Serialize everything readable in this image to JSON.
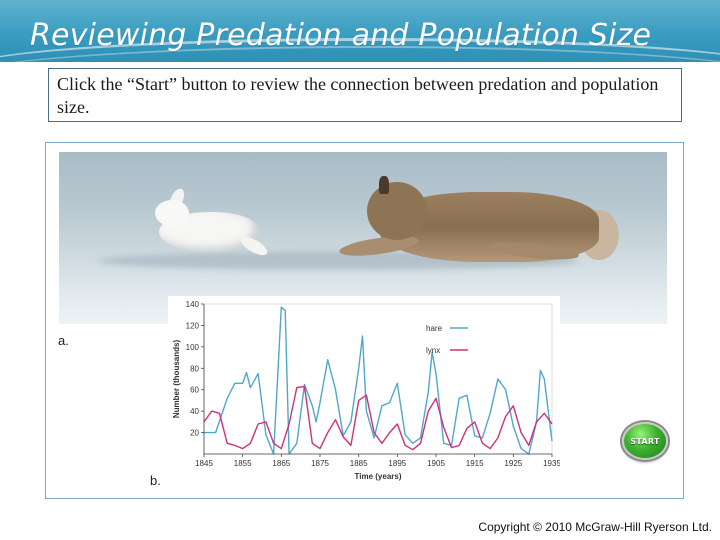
{
  "header": {
    "title": "Reviewing Predation and Population Size"
  },
  "instructions": {
    "text": "Click the “Start” button to review the connection between predation and population size."
  },
  "figure": {
    "photo_label": "a.",
    "chart_label": "b."
  },
  "start_button": {
    "label": "START"
  },
  "footer": {
    "copyright": "Copyright © 2010 McGraw-Hill Ryerson Ltd."
  },
  "colors": {
    "header": "#3a9cc0",
    "hare": "#4fa8c8",
    "lynx": "#d0307a",
    "start": "#3cb22e"
  },
  "chart_data": {
    "type": "line",
    "xlabel": "Time (years)",
    "ylabel": "Number (thousands)",
    "xlim": [
      1845,
      1935
    ],
    "ylim": [
      0,
      140
    ],
    "xticks": [
      1845,
      1855,
      1865,
      1875,
      1885,
      1895,
      1905,
      1915,
      1925,
      1935
    ],
    "yticks": [
      20,
      40,
      60,
      80,
      100,
      120,
      140
    ],
    "legend": "top-right",
    "series": [
      {
        "name": "hare",
        "x": [
          1845,
          1848,
          1851,
          1853,
          1855,
          1856,
          1857,
          1859,
          1861,
          1863,
          1865,
          1866,
          1867,
          1869,
          1871,
          1873,
          1874,
          1875,
          1877,
          1879,
          1881,
          1883,
          1885,
          1886,
          1887,
          1889,
          1891,
          1893,
          1895,
          1897,
          1899,
          1901,
          1903,
          1904,
          1905,
          1907,
          1909,
          1911,
          1913,
          1915,
          1917,
          1919,
          1921,
          1923,
          1925,
          1927,
          1929,
          1931,
          1932,
          1933,
          1935
        ],
        "values": [
          20,
          20,
          52,
          66,
          66,
          76,
          62,
          75,
          18,
          0,
          137,
          134,
          0,
          10,
          65,
          45,
          30,
          48,
          88,
          60,
          17,
          30,
          80,
          110,
          40,
          15,
          45,
          48,
          66,
          18,
          10,
          15,
          58,
          95,
          75,
          10,
          8,
          52,
          55,
          17,
          15,
          38,
          70,
          60,
          26,
          5,
          0,
          30,
          78,
          70,
          12
        ],
        "color": "#4fa8c8"
      },
      {
        "name": "lynx",
        "x": [
          1845,
          1847,
          1849,
          1851,
          1853,
          1855,
          1857,
          1859,
          1861,
          1863,
          1865,
          1867,
          1869,
          1871,
          1873,
          1875,
          1877,
          1879,
          1881,
          1883,
          1885,
          1887,
          1889,
          1891,
          1893,
          1895,
          1897,
          1899,
          1901,
          1903,
          1905,
          1907,
          1909,
          1911,
          1913,
          1915,
          1917,
          1919,
          1921,
          1923,
          1925,
          1927,
          1929,
          1931,
          1933,
          1935
        ],
        "values": [
          30,
          40,
          38,
          10,
          8,
          5,
          10,
          28,
          30,
          10,
          5,
          28,
          62,
          63,
          10,
          5,
          20,
          32,
          16,
          8,
          50,
          55,
          20,
          10,
          20,
          28,
          8,
          4,
          10,
          40,
          52,
          25,
          6,
          8,
          24,
          30,
          10,
          5,
          15,
          35,
          45,
          20,
          8,
          30,
          38,
          28
        ],
        "color": "#d0307a"
      }
    ]
  }
}
